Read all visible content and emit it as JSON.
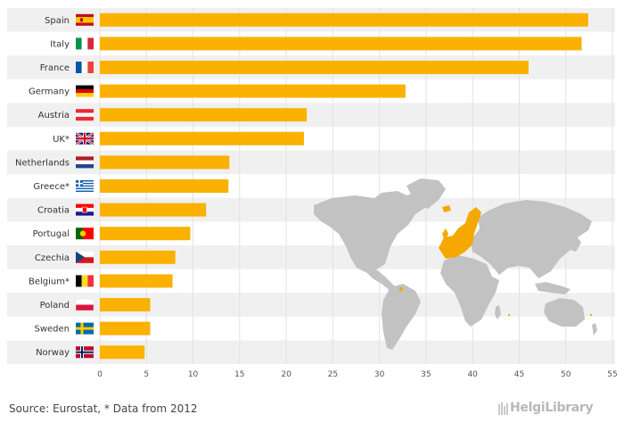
{
  "source_text": "Source: Eurostat, * Data from 2012",
  "brand_text": "HelgiLibrary",
  "colors": {
    "bar": "#fbb100",
    "band": "#f0f0f0",
    "map_land": "#c2c2c2",
    "map_highlight": "#f5a800"
  },
  "chart_data": {
    "type": "bar",
    "orientation": "horizontal",
    "categories": [
      "Spain",
      "Italy",
      "France",
      "Germany",
      "Austria",
      "UK*",
      "Netherlands",
      "Greece*",
      "Croatia",
      "Portugal",
      "Czechia",
      "Belgium*",
      "Poland",
      "Sweden",
      "Norway"
    ],
    "values": [
      52.4,
      51.7,
      46.0,
      32.8,
      22.2,
      21.9,
      13.9,
      13.8,
      11.4,
      9.7,
      8.1,
      7.8,
      5.4,
      5.4,
      4.8
    ],
    "xlim": [
      0,
      55
    ],
    "xticks": [
      0,
      5,
      10,
      15,
      20,
      25,
      30,
      35,
      40,
      45,
      50,
      55
    ],
    "grid": true,
    "legend": "none",
    "flags": [
      "spain-flag",
      "italy-flag",
      "france-flag",
      "germany-flag",
      "austria-flag",
      "uk-flag",
      "netherlands-flag",
      "greece-flag",
      "croatia-flag",
      "portugal-flag",
      "czechia-flag",
      "belgium-flag",
      "poland-flag",
      "sweden-flag",
      "norway-flag"
    ]
  }
}
